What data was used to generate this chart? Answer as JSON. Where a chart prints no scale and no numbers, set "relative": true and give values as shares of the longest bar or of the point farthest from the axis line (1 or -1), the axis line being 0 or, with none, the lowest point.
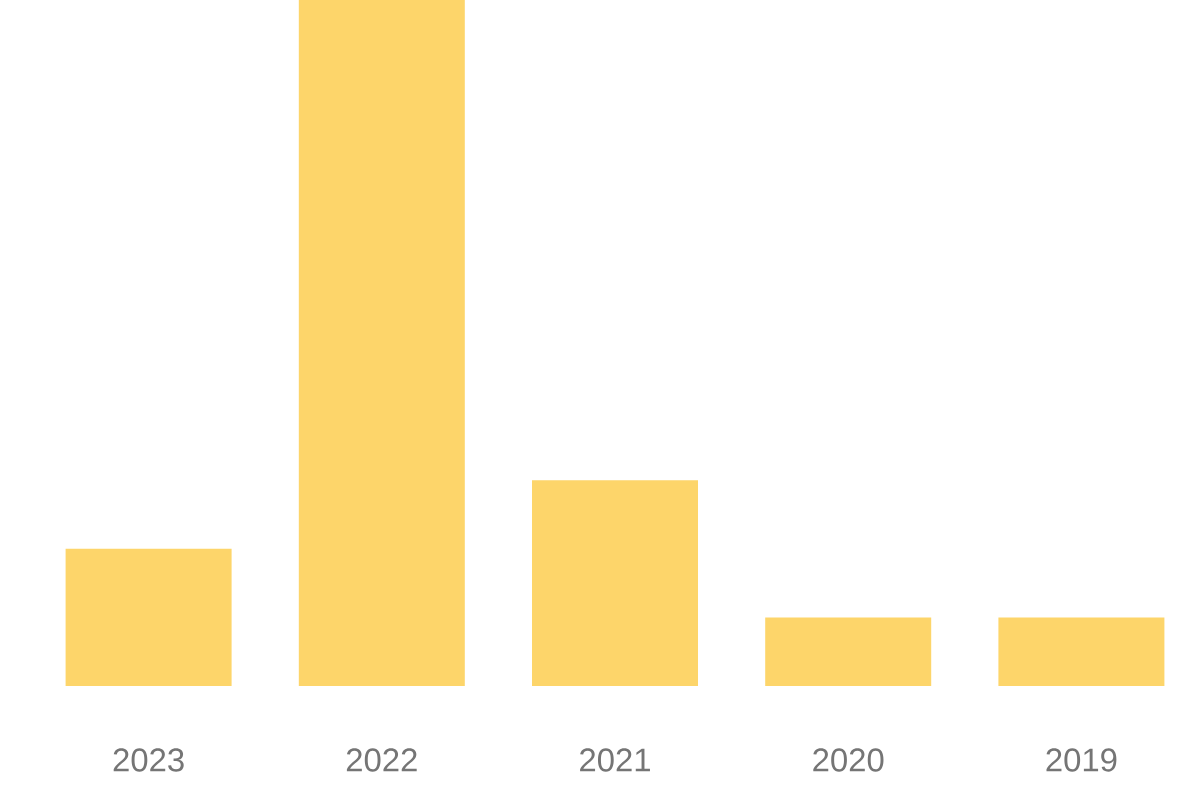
{
  "chart_data": {
    "type": "bar",
    "relative": true,
    "categories": [
      "2023",
      "2022",
      "2021",
      "2020",
      "2019"
    ],
    "values": [
      0.2,
      1,
      0.3,
      0.1,
      0.1
    ],
    "color": "#fdd56a"
  }
}
